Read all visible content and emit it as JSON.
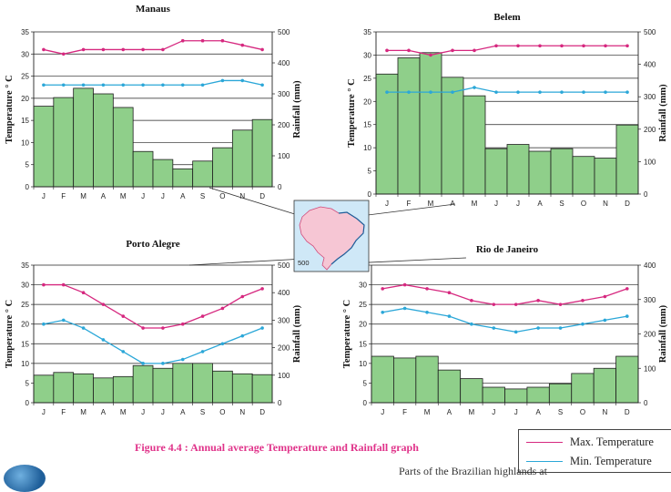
{
  "caption": "Figure 4.4 : Annual average Temperature and Rainfall graph",
  "footer_text": "Parts of the Brazilian highlands at",
  "legend": {
    "max_label": "Max. Temperature",
    "min_label": "Min. Temperature"
  },
  "colors": {
    "max_temp": "#d6287f",
    "min_temp": "#2ba7d8",
    "rainfall_bar": "#8fcf8a",
    "bar_stroke": "#1d1d1d",
    "grid": "#222222",
    "caption": "#e0338a",
    "map_water": "#cfe8f7",
    "map_land": "#f6c6d4"
  },
  "shared": {
    "months": [
      "J",
      "F",
      "M",
      "A",
      "M",
      "J",
      "J",
      "A",
      "S",
      "O",
      "N",
      "D"
    ],
    "temp_axis_title": "Temperature ° C",
    "rain_axis_title": "Rainfall (mm)"
  },
  "map_labels": {
    "top": "",
    "bottom": "500"
  },
  "chart_data": [
    {
      "id": "manaus",
      "type": "bar+line",
      "title": "Manaus",
      "categories": [
        "J",
        "F",
        "M",
        "A",
        "M",
        "J",
        "J",
        "A",
        "S",
        "O",
        "N",
        "D"
      ],
      "xlabel": "",
      "ylabel": "Temperature ° C",
      "y2label": "Rainfall (mm)",
      "ylim": [
        0,
        35
      ],
      "y2lim": [
        0,
        500
      ],
      "yticks": [
        0,
        5,
        10,
        15,
        20,
        25,
        30,
        35
      ],
      "y2ticks": [
        0,
        100,
        200,
        300,
        400,
        500
      ],
      "grid": true,
      "series": [
        {
          "name": "Max. Temperature",
          "kind": "line",
          "axis": "left",
          "values": [
            31,
            30,
            31,
            31,
            31,
            31,
            31,
            33,
            33,
            33,
            32,
            31
          ]
        },
        {
          "name": "Min. Temperature",
          "kind": "line",
          "axis": "left",
          "values": [
            23,
            23,
            23,
            23,
            23,
            23,
            23,
            23,
            23,
            24,
            24,
            23
          ]
        },
        {
          "name": "Rainfall",
          "kind": "bar",
          "axis": "right",
          "values": [
            260,
            288,
            318,
            300,
            256,
            114,
            88,
            58,
            83,
            126,
            183,
            217
          ]
        }
      ]
    },
    {
      "id": "belem",
      "type": "bar+line",
      "title": "Belem",
      "categories": [
        "J",
        "F",
        "M",
        "A",
        "M",
        "J",
        "J",
        "A",
        "S",
        "O",
        "N",
        "D"
      ],
      "xlabel": "",
      "ylabel": "Temperature ° C",
      "y2label": "Rainfall (mm)",
      "ylim": [
        0,
        35
      ],
      "y2lim": [
        0,
        500
      ],
      "yticks": [
        0,
        5,
        10,
        15,
        20,
        25,
        30,
        35
      ],
      "y2ticks": [
        0,
        100,
        200,
        300,
        400,
        500
      ],
      "grid": true,
      "series": [
        {
          "name": "Max. Temperature",
          "kind": "line",
          "axis": "left",
          "values": [
            31,
            31,
            30,
            31,
            31,
            32,
            32,
            32,
            32,
            32,
            32,
            32
          ]
        },
        {
          "name": "Min. Temperature",
          "kind": "line",
          "axis": "left",
          "values": [
            22,
            22,
            22,
            22,
            23,
            22,
            22,
            22,
            22,
            22,
            22,
            22
          ]
        },
        {
          "name": "Rainfall",
          "kind": "bar",
          "axis": "right",
          "values": [
            370,
            420,
            436,
            360,
            303,
            140,
            153,
            132,
            140,
            116,
            111,
            213
          ]
        }
      ]
    },
    {
      "id": "porto-alegre",
      "type": "bar+line",
      "title": "Porto Alegre",
      "categories": [
        "J",
        "F",
        "M",
        "A",
        "M",
        "J",
        "J",
        "A",
        "S",
        "O",
        "N",
        "D"
      ],
      "xlabel": "",
      "ylabel": "Temperature ° C",
      "y2label": "Rainfall (mm)",
      "ylim": [
        0,
        35
      ],
      "y2lim": [
        0,
        500
      ],
      "yticks": [
        0,
        5,
        10,
        15,
        20,
        25,
        30,
        35
      ],
      "y2ticks": [
        0,
        100,
        200,
        300,
        400,
        500
      ],
      "grid": true,
      "series": [
        {
          "name": "Max. Temperature",
          "kind": "line",
          "axis": "left",
          "values": [
            30,
            30,
            28,
            25,
            22,
            19,
            19,
            20,
            22,
            24,
            27,
            29
          ]
        },
        {
          "name": "Min. Temperature",
          "kind": "line",
          "axis": "left",
          "values": [
            20,
            21,
            19,
            16,
            13,
            10,
            10,
            11,
            13,
            15,
            17,
            19
          ]
        },
        {
          "name": "Rainfall",
          "kind": "bar",
          "axis": "right",
          "values": [
            100,
            110,
            105,
            90,
            95,
            135,
            125,
            143,
            143,
            115,
            105,
            102
          ]
        }
      ]
    },
    {
      "id": "rio-de-janeiro",
      "type": "bar+line",
      "title": "Rio de Janeiro",
      "categories": [
        "J",
        "F",
        "M",
        "A",
        "M",
        "J",
        "J",
        "A",
        "S",
        "O",
        "N",
        "D"
      ],
      "xlabel": "",
      "ylabel": "Temperature ° C",
      "y2label": "Rainfall (mm)",
      "ylim": [
        0,
        35
      ],
      "y2lim": [
        0,
        400
      ],
      "yticks": [
        0,
        5,
        10,
        15,
        20,
        25,
        30,
        35
      ],
      "y2ticks": [
        0,
        100,
        200,
        300,
        400
      ],
      "grid": true,
      "series": [
        {
          "name": "Max. Temperature",
          "kind": "line",
          "axis": "left",
          "values": [
            29,
            30,
            29,
            28,
            26,
            25,
            25,
            26,
            25,
            26,
            27,
            29
          ]
        },
        {
          "name": "Min. Temperature",
          "kind": "line",
          "axis": "left",
          "values": [
            23,
            24,
            23,
            22,
            20,
            19,
            18,
            19,
            19,
            20,
            21,
            22
          ]
        },
        {
          "name": "Rainfall",
          "kind": "bar",
          "axis": "right",
          "values": [
            135,
            130,
            135,
            95,
            70,
            45,
            40,
            45,
            55,
            85,
            100,
            135
          ]
        }
      ]
    }
  ]
}
